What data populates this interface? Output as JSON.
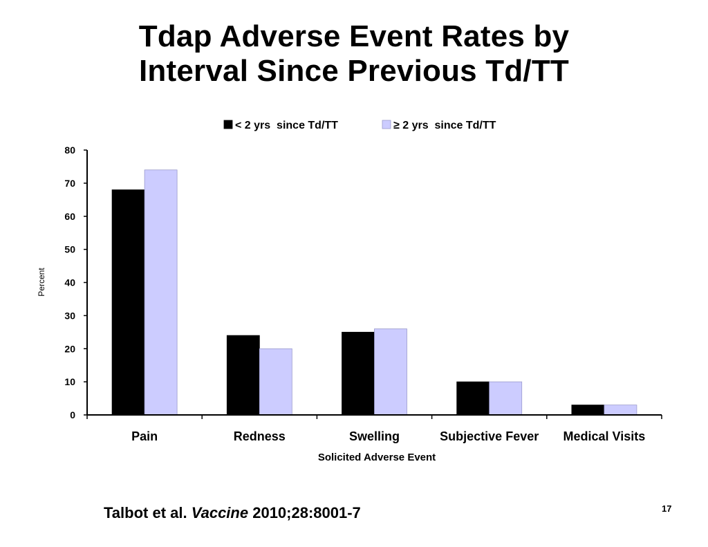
{
  "slide": {
    "title_line1": "Tdap Adverse Event Rates by",
    "title_line2": "Interval Since Previous Td/TT",
    "citation_authors": "Talbot et al.",
    "citation_journal": "Vaccine",
    "citation_ref": "2010;28:8001-7",
    "page_number": "17"
  },
  "chart_data": {
    "type": "bar",
    "title": "",
    "xlabel": "Solicited Adverse Event",
    "ylabel": "Percent",
    "ylim": [
      0,
      80
    ],
    "yticks": [
      0,
      10,
      20,
      30,
      40,
      50,
      60,
      70,
      80
    ],
    "grid": false,
    "legend_position": "top",
    "categories": [
      "Pain",
      "Redness",
      "Swelling",
      "Subjective Fever",
      "Medical Visits"
    ],
    "series": [
      {
        "name": "< 2 yrs  since Td/TT",
        "color": "#000000",
        "values": [
          68,
          24,
          25,
          10,
          3
        ]
      },
      {
        "name": "≥ 2 yrs  since Td/TT",
        "color": "#ccccff",
        "values": [
          74,
          20,
          26,
          10,
          3
        ]
      }
    ]
  }
}
